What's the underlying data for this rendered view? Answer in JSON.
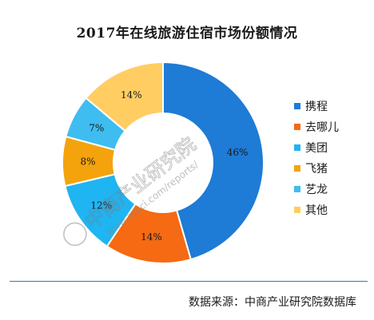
{
  "chart_data": {
    "type": "pie",
    "title": "2017年在线旅游住宿市场份额情况",
    "categories": [
      "携程",
      "去哪儿",
      "美团",
      "飞猪",
      "艺龙",
      "其他"
    ],
    "values": [
      46,
      14,
      12,
      8,
      7,
      14
    ],
    "value_labels": [
      "46%",
      "14%",
      "12%",
      "8%",
      "7%",
      "14%"
    ],
    "colors": [
      "#1e7bd6",
      "#f56a12",
      "#1fb4f2",
      "#f5a30c",
      "#3fbdf0",
      "#ffcd62"
    ],
    "donut": true,
    "start_angle_deg": 0,
    "direction": "clockwise",
    "legend_position": "right"
  },
  "source": "数据来源：中商产业研究院数据库",
  "watermark": {
    "text_cn": "中商产业研究院",
    "text_url": "www.askci.com/reports/"
  }
}
